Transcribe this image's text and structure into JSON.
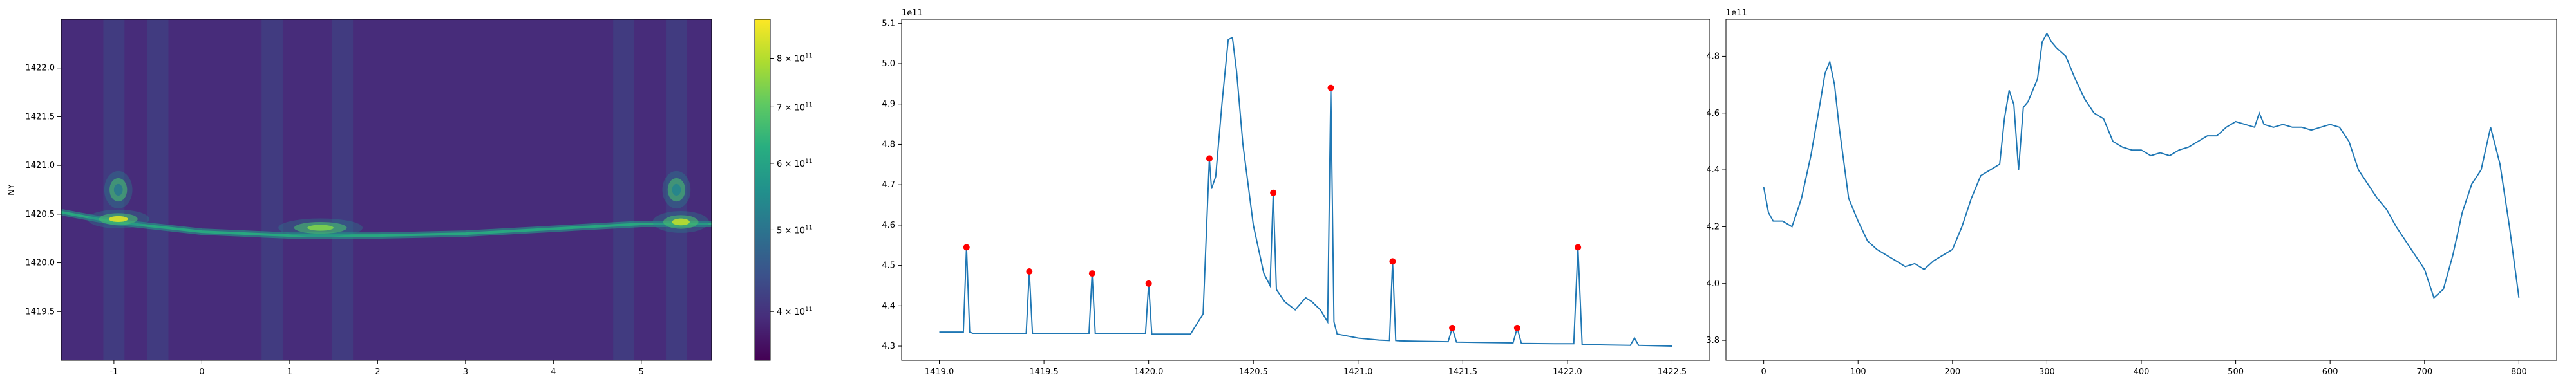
{
  "chart_data": [
    {
      "type": "heatmap",
      "ylabel": "NY",
      "xlabel": "",
      "xlim": [
        -1.6,
        5.8
      ],
      "ylim": [
        1419.0,
        1422.5
      ],
      "xticks": [
        -1,
        0,
        1,
        2,
        3,
        4,
        5
      ],
      "yticks": [
        1419.5,
        1420.0,
        1420.5,
        1421.0,
        1421.5,
        1422.0
      ],
      "colormap": "viridis",
      "colorbar": {
        "scale": "log",
        "range": [
          350000000000.0,
          890000000000.0
        ],
        "tick_values": [
          400000000000.0,
          500000000000.0,
          600000000000.0,
          700000000000.0,
          800000000000.0
        ],
        "tick_labels": [
          {
            "mantissa": "4",
            "base": "10",
            "exp": "11"
          },
          {
            "mantissa": "5",
            "base": "10",
            "exp": "11"
          },
          {
            "mantissa": "6",
            "base": "10",
            "exp": "11"
          },
          {
            "mantissa": "7",
            "base": "10",
            "exp": "11"
          },
          {
            "mantissa": "8",
            "base": "10",
            "exp": "11"
          }
        ]
      },
      "features": {
        "ridge": [
          [
            -1.6,
            1420.52
          ],
          [
            -1.0,
            1420.42
          ],
          [
            0.0,
            1420.32
          ],
          [
            1.0,
            1420.28
          ],
          [
            2.0,
            1420.28
          ],
          [
            3.0,
            1420.3
          ],
          [
            4.0,
            1420.35
          ],
          [
            5.0,
            1420.4
          ],
          [
            5.8,
            1420.4
          ]
        ],
        "bright_spots": [
          {
            "x": -0.95,
            "y": 1420.45,
            "sx": 0.22,
            "sy": 0.06,
            "value": 0.95
          },
          {
            "x": 1.35,
            "y": 1420.36,
            "sx": 0.3,
            "sy": 0.06,
            "value": 0.8
          },
          {
            "x": 5.45,
            "y": 1420.42,
            "sx": 0.2,
            "sy": 0.07,
            "value": 0.9
          },
          {
            "x": -0.95,
            "y": 1420.75,
            "sx": 0.1,
            "sy": 0.12,
            "value": 0.4
          },
          {
            "x": 5.4,
            "y": 1420.75,
            "sx": 0.1,
            "sy": 0.12,
            "value": 0.45
          }
        ]
      }
    },
    {
      "type": "line",
      "offset_text": "1e11",
      "xlim": [
        1418.82,
        1422.68
      ],
      "ylim": [
        4.265,
        5.11
      ],
      "xticks": [
        1419.0,
        1419.5,
        1420.0,
        1420.5,
        1421.0,
        1421.5,
        1422.0,
        1422.5
      ],
      "xtick_labels": [
        "1419.0",
        "1419.5",
        "1420.0",
        "1420.5",
        "1421.0",
        "1421.5",
        "1422.0",
        "1422.5"
      ],
      "yticks": [
        4.3,
        4.4,
        4.5,
        4.6,
        4.7,
        4.8,
        4.9,
        5.0,
        5.1
      ],
      "ytick_labels": [
        "4.3",
        "4.4",
        "4.5",
        "4.6",
        "4.7",
        "4.8",
        "4.9",
        "5.0",
        "5.1"
      ],
      "line_color": "#1f77b4",
      "marker_color": "#ff0000",
      "x": [
        1419.0,
        1419.1,
        1419.115,
        1419.13,
        1419.145,
        1419.16,
        1419.3,
        1419.4,
        1419.415,
        1419.43,
        1419.445,
        1419.46,
        1419.6,
        1419.7,
        1419.715,
        1419.73,
        1419.745,
        1419.76,
        1419.9,
        1419.985,
        1420.0,
        1420.015,
        1420.03,
        1420.2,
        1420.26,
        1420.29,
        1420.3,
        1420.32,
        1420.35,
        1420.38,
        1420.4,
        1420.42,
        1420.45,
        1420.5,
        1420.55,
        1420.58,
        1420.595,
        1420.61,
        1420.65,
        1420.7,
        1420.75,
        1420.78,
        1420.82,
        1420.855,
        1420.87,
        1420.885,
        1420.9,
        1421.0,
        1421.1,
        1421.15,
        1421.165,
        1421.18,
        1421.2,
        1421.3,
        1421.43,
        1421.45,
        1421.47,
        1421.6,
        1421.74,
        1421.76,
        1421.78,
        1421.95,
        1422.03,
        1422.05,
        1422.07,
        1422.2,
        1422.3,
        1422.32,
        1422.34,
        1422.5
      ],
      "y": [
        4.335,
        4.335,
        4.335,
        4.545,
        4.335,
        4.332,
        4.332,
        4.332,
        4.332,
        4.485,
        4.332,
        4.332,
        4.332,
        4.332,
        4.332,
        4.48,
        4.332,
        4.332,
        4.332,
        4.332,
        4.455,
        4.33,
        4.33,
        4.33,
        4.38,
        4.765,
        4.69,
        4.72,
        4.9,
        5.06,
        5.065,
        4.98,
        4.8,
        4.6,
        4.48,
        4.45,
        4.68,
        4.44,
        4.41,
        4.39,
        4.42,
        4.41,
        4.39,
        4.36,
        4.94,
        4.36,
        4.33,
        4.32,
        4.315,
        4.314,
        4.51,
        4.314,
        4.313,
        4.312,
        4.311,
        4.345,
        4.31,
        4.309,
        4.308,
        4.345,
        4.307,
        4.306,
        4.306,
        4.545,
        4.304,
        4.303,
        4.302,
        4.32,
        4.302,
        4.3
      ],
      "peaks": [
        {
          "x": 1419.13,
          "y": 4.545
        },
        {
          "x": 1419.43,
          "y": 4.485
        },
        {
          "x": 1419.73,
          "y": 4.48
        },
        {
          "x": 1420.0,
          "y": 4.455
        },
        {
          "x": 1420.29,
          "y": 4.765
        },
        {
          "x": 1420.595,
          "y": 4.68
        },
        {
          "x": 1420.87,
          "y": 4.94
        },
        {
          "x": 1421.165,
          "y": 4.51
        },
        {
          "x": 1421.45,
          "y": 4.345
        },
        {
          "x": 1421.76,
          "y": 4.345
        },
        {
          "x": 1422.05,
          "y": 4.545
        }
      ]
    },
    {
      "type": "line",
      "offset_text": "1e11",
      "xlim": [
        -40,
        840
      ],
      "ylim": [
        3.73,
        4.93
      ],
      "xticks": [
        0,
        100,
        200,
        300,
        400,
        500,
        600,
        700,
        800
      ],
      "xtick_labels": [
        "0",
        "100",
        "200",
        "300",
        "400",
        "500",
        "600",
        "700",
        "800"
      ],
      "yticks": [
        3.8,
        4.0,
        4.2,
        4.4,
        4.6,
        4.8
      ],
      "ytick_labels": [
        "3.8",
        "4.0",
        "4.2",
        "4.4",
        "4.6",
        "4.8"
      ],
      "line_color": "#1f77b4",
      "x": [
        0,
        5,
        10,
        20,
        30,
        40,
        50,
        60,
        65,
        70,
        75,
        80,
        90,
        100,
        110,
        120,
        130,
        140,
        150,
        160,
        170,
        180,
        190,
        200,
        210,
        220,
        230,
        240,
        250,
        255,
        260,
        265,
        270,
        275,
        280,
        290,
        295,
        300,
        305,
        310,
        320,
        330,
        340,
        350,
        360,
        370,
        380,
        390,
        400,
        410,
        420,
        430,
        440,
        450,
        460,
        470,
        480,
        490,
        500,
        510,
        520,
        525,
        530,
        540,
        550,
        560,
        570,
        580,
        590,
        600,
        610,
        620,
        630,
        640,
        650,
        660,
        670,
        680,
        690,
        700,
        710,
        720,
        730,
        740,
        750,
        760,
        770,
        780,
        790,
        800
      ],
      "y": [
        4.34,
        4.25,
        4.22,
        4.22,
        4.2,
        4.3,
        4.45,
        4.64,
        4.74,
        4.78,
        4.7,
        4.55,
        4.3,
        4.22,
        4.15,
        4.12,
        4.1,
        4.08,
        4.06,
        4.07,
        4.05,
        4.08,
        4.1,
        4.12,
        4.2,
        4.3,
        4.38,
        4.4,
        4.42,
        4.58,
        4.68,
        4.63,
        4.4,
        4.62,
        4.64,
        4.72,
        4.85,
        4.88,
        4.85,
        4.83,
        4.8,
        4.72,
        4.65,
        4.6,
        4.58,
        4.5,
        4.48,
        4.47,
        4.47,
        4.45,
        4.46,
        4.45,
        4.47,
        4.48,
        4.5,
        4.52,
        4.52,
        4.55,
        4.57,
        4.56,
        4.55,
        4.6,
        4.56,
        4.55,
        4.56,
        4.55,
        4.55,
        4.54,
        4.55,
        4.56,
        4.55,
        4.5,
        4.4,
        4.35,
        4.3,
        4.26,
        4.2,
        4.15,
        4.1,
        4.05,
        3.95,
        3.98,
        4.1,
        4.25,
        4.35,
        4.4,
        4.55,
        4.42,
        4.2,
        3.95
      ]
    }
  ]
}
